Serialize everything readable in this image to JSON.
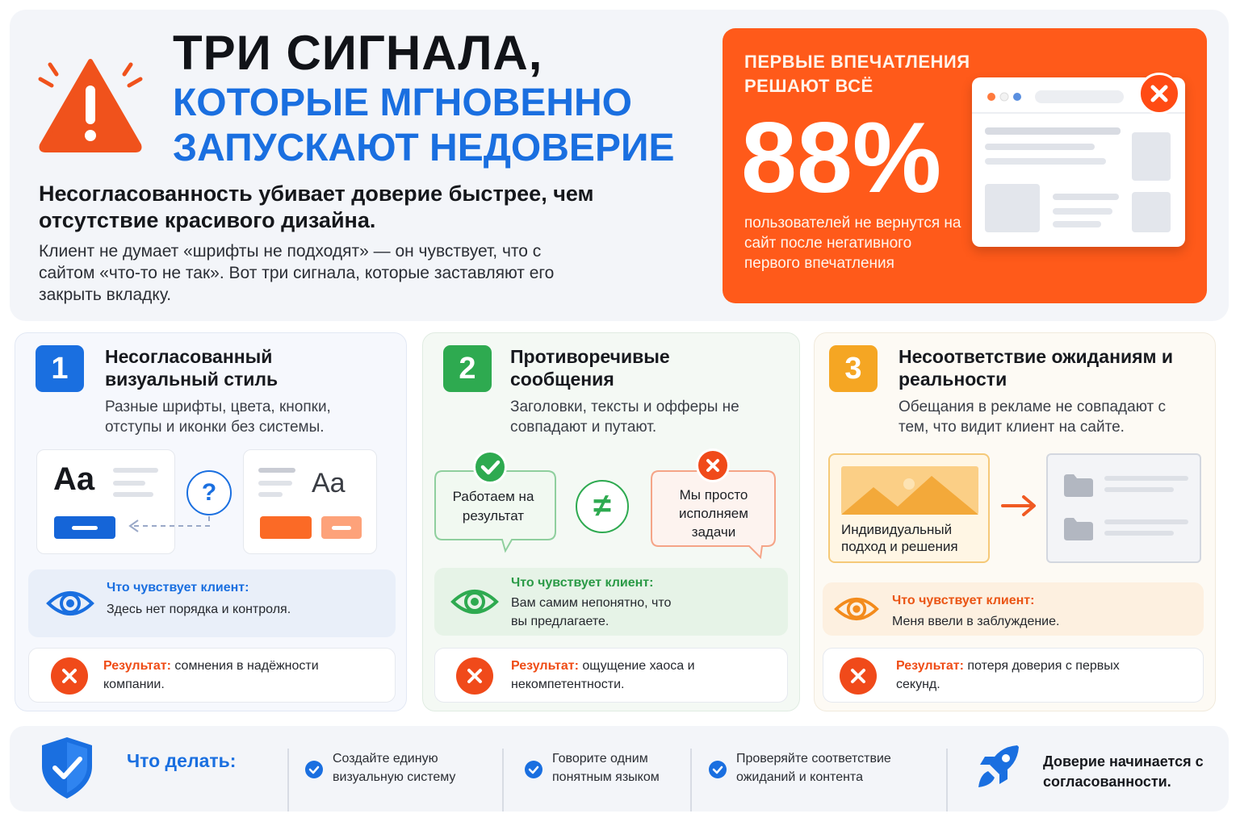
{
  "header": {
    "title_line1": "ТРИ СИГНАЛА,",
    "title_line2": "КОТОРЫЕ МГНОВЕННО",
    "title_line3": "ЗАПУСКАЮТ НЕДОВЕРИЕ",
    "subtitle": "Несогласованность убивает доверие быстрее, чем отсутствие красивого дизайна.",
    "intro": "Клиент не думает «шрифты не подходят» — он чувствует, что с сайтом «что-то не так». Вот три сигнала, которые заставляют его закрыть вкладку."
  },
  "stat": {
    "eyebrow": "ПЕРВЫЕ ВПЕЧАТЛЕНИЯ РЕШАЮТ ВСЁ",
    "value": "88%",
    "description": "пользователей не вернутся на сайт после негативного первого впечатления"
  },
  "colors": {
    "accent_blue": "#1a6fe0",
    "accent_green": "#2eaa50",
    "accent_orange": "#ff5a1a",
    "accent_yellow": "#f5a623",
    "danger_red": "#f04a1a"
  },
  "signals": [
    {
      "number": "1",
      "title": "Несогласованный визуальный стиль",
      "description": "Разные шрифты, цвета, кнопки, отступы и иконки без системы.",
      "sample_a": "Aa",
      "sample_b": "Aa",
      "question": "?",
      "feel_label": "Что чувствует клиент:",
      "feel_text": "Здесь нет порядка и контроля.",
      "result_label": "Результат:",
      "result_text": "сомнения в надёжности компании."
    },
    {
      "number": "2",
      "title": "Противоречивые сообщения",
      "description": "Заголовки, тексты и офферы не совпадают и путают.",
      "bubble_good": "Работаем на результат",
      "bubble_bad": "Мы просто исполняем задачи",
      "not_equal": "≠",
      "feel_label": "Что чувствует клиент:",
      "feel_text": "Вам самим непонятно, что вы предлагаете.",
      "result_label": "Результат:",
      "result_text": "ощущение хаоса и некомпетентности."
    },
    {
      "number": "3",
      "title": "Несоответствие ожиданиям и реальности",
      "description": "Обещания в рекламе не совпадают с тем, что видит клиент на сайте.",
      "ad_caption": "Индивидуальный подход и решения",
      "feel_label": "Что чувствует клиент:",
      "feel_text": "Меня ввели в заблуждение.",
      "result_label": "Результат:",
      "result_text": "потеря доверия с первых секунд."
    }
  ],
  "footer": {
    "todo_label": "Что делать:",
    "tips": [
      "Создайте единую визуальную систему",
      "Говорите одним понятным языком",
      "Проверяйте соответствие ожиданий и контента"
    ],
    "final": "Доверие начинается с согласованности."
  },
  "icons": [
    "warning-icon",
    "close-icon",
    "question-icon",
    "check-icon",
    "not-equal-icon",
    "eye-icon",
    "arrow-right-icon",
    "image-icon",
    "folder-icon",
    "shield-check-icon",
    "rocket-icon"
  ]
}
